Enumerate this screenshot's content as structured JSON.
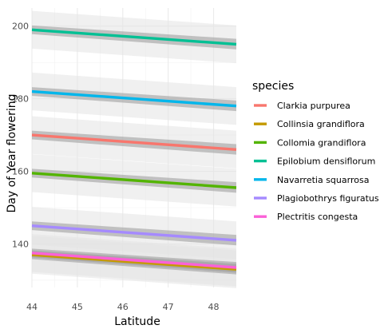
{
  "chart_data": {
    "type": "line",
    "xlabel": "Latitude",
    "ylabel": "Day of Year flowering",
    "xlim": [
      44,
      48.5
    ],
    "ylim": [
      128,
      205
    ],
    "x_ticks": [
      44,
      45,
      46,
      47,
      48
    ],
    "y_ticks": [
      140,
      160,
      180,
      200
    ],
    "x_tick_labels": [
      "44",
      "45",
      "46",
      "47",
      "48"
    ],
    "y_tick_labels": [
      "140",
      "160",
      "180",
      "200"
    ],
    "grid": true,
    "legend": {
      "title": "species",
      "placement": "right"
    },
    "x": [
      44,
      48.5
    ],
    "series": [
      {
        "name": "Clarkia purpurea",
        "color": "#F8766D",
        "values": [
          170.0,
          166.0
        ],
        "ci_lower": [
          168.8,
          164.6
        ],
        "ci_upper": [
          171.2,
          167.5
        ],
        "pi_lower": [
          164.8,
          160.8
        ],
        "pi_upper": [
          175.2,
          171.2
        ]
      },
      {
        "name": "Collinsia grandiflora",
        "color": "#C49A00",
        "values": [
          137.0,
          133.0
        ],
        "ci_lower": [
          135.8,
          131.6
        ],
        "ci_upper": [
          138.2,
          134.5
        ],
        "pi_lower": [
          131.8,
          127.8
        ],
        "pi_upper": [
          142.2,
          138.2
        ]
      },
      {
        "name": "Collomia grandiflora",
        "color": "#53B400",
        "values": [
          159.5,
          155.5
        ],
        "ci_lower": [
          158.3,
          154.1
        ],
        "ci_upper": [
          160.7,
          157.0
        ],
        "pi_lower": [
          154.3,
          150.3
        ],
        "pi_upper": [
          164.7,
          160.7
        ]
      },
      {
        "name": "Epilobium densiflorum",
        "color": "#00C094",
        "values": [
          199.0,
          195.0
        ],
        "ci_lower": [
          197.8,
          193.6
        ],
        "ci_upper": [
          200.2,
          196.5
        ],
        "pi_lower": [
          193.8,
          189.8
        ],
        "pi_upper": [
          204.2,
          200.2
        ]
      },
      {
        "name": "Navarretia squarrosa",
        "color": "#00B6EB",
        "values": [
          182.0,
          178.0
        ],
        "ci_lower": [
          180.8,
          176.6
        ],
        "ci_upper": [
          183.2,
          179.5
        ],
        "pi_lower": [
          176.8,
          172.8
        ],
        "pi_upper": [
          187.2,
          183.2
        ]
      },
      {
        "name": "Plagiobothrys figuratus",
        "color": "#A58AFF",
        "values": [
          145.0,
          141.0
        ],
        "ci_lower": [
          143.8,
          139.6
        ],
        "ci_upper": [
          146.2,
          142.5
        ],
        "pi_lower": [
          139.8,
          135.8
        ],
        "pi_upper": [
          150.2,
          146.2
        ]
      },
      {
        "name": "Plectritis congesta",
        "color": "#FB61D7",
        "values": [
          137.5,
          133.5
        ],
        "ci_lower": [
          136.3,
          132.1
        ],
        "ci_upper": [
          138.7,
          135.0
        ],
        "pi_lower": [
          132.3,
          128.3
        ],
        "pi_upper": [
          142.7,
          138.7
        ]
      }
    ]
  }
}
